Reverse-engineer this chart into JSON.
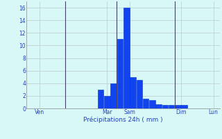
{
  "bar_values": [
    0,
    0,
    0,
    0,
    0,
    0,
    0,
    0,
    0,
    0,
    0,
    3,
    2,
    4,
    11,
    16,
    5,
    4.5,
    1.5,
    1.3,
    0.7,
    0.5,
    0.5,
    0.5,
    0.5,
    0,
    0,
    0,
    0,
    0
  ],
  "bar_color": "#1144ee",
  "bar_edge_color": "#0033cc",
  "background_color": "#d8f7f7",
  "grid_color": "#bbcccc",
  "text_color": "#2244bb",
  "xlabel": "Précipitations 24h ( mm )",
  "ylim": [
    0,
    17
  ],
  "yticks": [
    0,
    2,
    4,
    6,
    8,
    10,
    12,
    14,
    16
  ],
  "day_labels": [
    "Ven",
    "Mar",
    "Sam",
    "Dim",
    "Lun"
  ],
  "day_tick_positions": [
    1.5,
    12.0,
    15.5,
    23.5,
    28.5
  ],
  "vline_positions": [
    5.5,
    13.5,
    22.5
  ],
  "n_bars": 30,
  "figsize": [
    3.2,
    2.0
  ],
  "dpi": 100
}
